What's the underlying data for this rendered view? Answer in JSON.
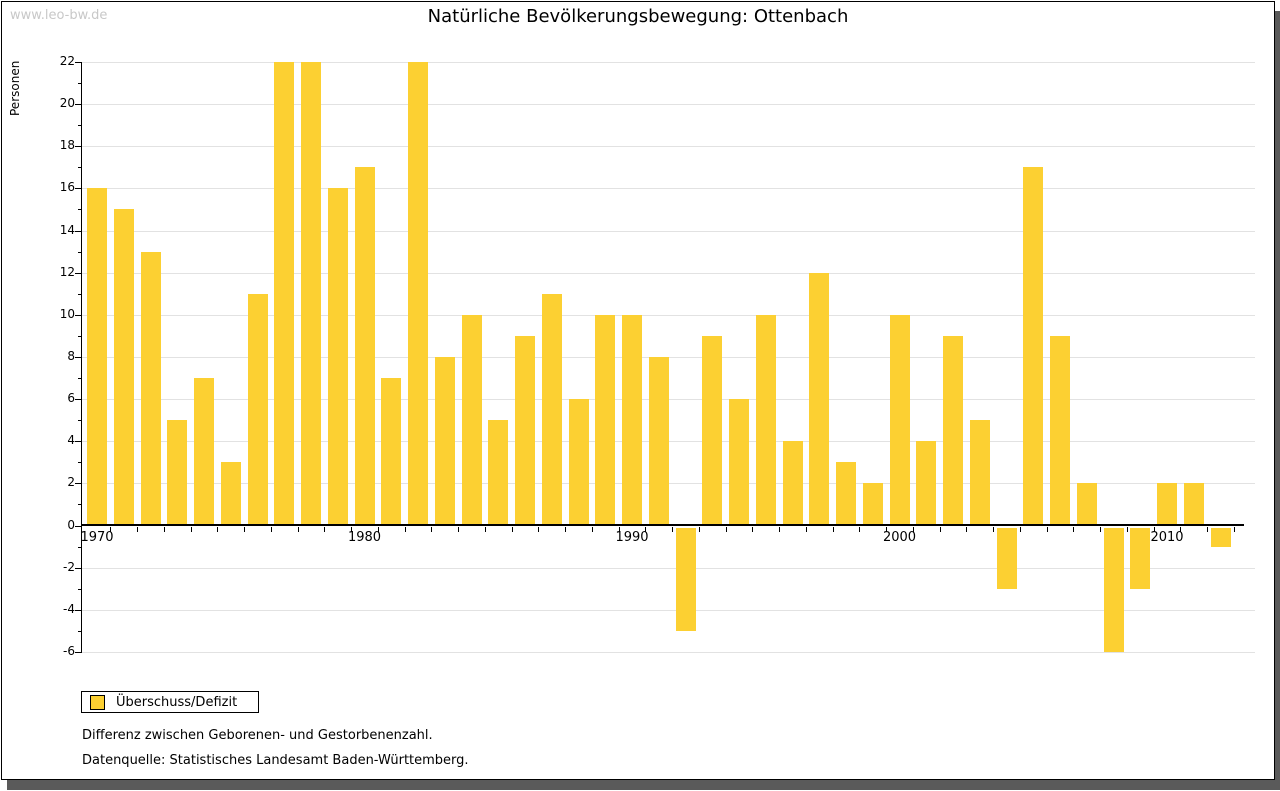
{
  "page": {
    "watermark": "www.leo-bw.de",
    "title": "Natürliche Bevölkerungsbewegung: Ottenbach",
    "notes": [
      "Differenz zwischen Geborenen- und Gestorbenenzahl.",
      "Datenquelle: Statistisches Landesamt Baden-Württemberg."
    ]
  },
  "legend": {
    "label": "Überschuss/Defizit",
    "swatch_color": "#FCD032"
  },
  "chart_data": {
    "type": "bar",
    "title": "Natürliche Bevölkerungsbewegung: Ottenbach",
    "xlabel": "",
    "ylabel": "Personen",
    "legend": [
      "Überschuss/Defizit"
    ],
    "x": [
      1970,
      1971,
      1972,
      1973,
      1974,
      1975,
      1976,
      1977,
      1978,
      1979,
      1980,
      1981,
      1982,
      1983,
      1984,
      1985,
      1986,
      1987,
      1988,
      1989,
      1990,
      1991,
      1992,
      1993,
      1994,
      1995,
      1996,
      1997,
      1998,
      1999,
      2000,
      2001,
      2002,
      2003,
      2004,
      2005,
      2006,
      2007,
      2008,
      2009,
      2010,
      2011,
      2012
    ],
    "values": [
      16,
      15,
      13,
      5,
      7,
      3,
      11,
      22,
      22,
      16,
      17,
      7,
      22,
      8,
      10,
      5,
      9,
      11,
      6,
      10,
      10,
      8,
      -5,
      9,
      6,
      10,
      4,
      12,
      3,
      2,
      10,
      4,
      9,
      5,
      -3,
      17,
      9,
      2,
      -6,
      -3,
      2,
      2,
      -1
    ],
    "ylim": [
      -6,
      22
    ],
    "ytick_step": 2,
    "ytick_minor_step": 1,
    "xtick_labels": [
      1970,
      1980,
      1990,
      2000,
      2010
    ],
    "grid": "horizontal",
    "legend_position": "bottom-left",
    "bar_color": "#FCD032",
    "grid_color": "#E2E2E2",
    "axis_color": "#000000"
  }
}
